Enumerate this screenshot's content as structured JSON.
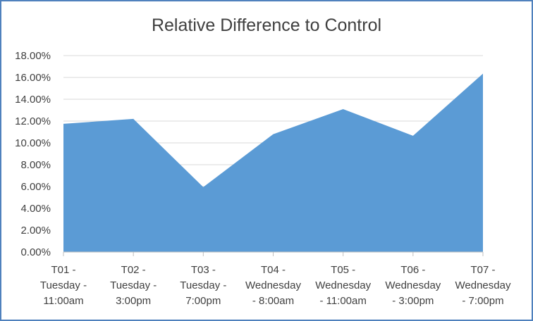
{
  "chart_data": {
    "type": "area",
    "title": "Relative Difference to Control",
    "xlabel": "",
    "ylabel": "",
    "categories": [
      [
        "T01 -",
        "Tuesday -",
        "11:00am"
      ],
      [
        "T02 -",
        "Tuesday -",
        "3:00pm"
      ],
      [
        "T03 -",
        "Tuesday -",
        "7:00pm"
      ],
      [
        "T04 -",
        "Wednesday",
        "- 8:00am"
      ],
      [
        "T05 -",
        "Wednesday",
        "- 11:00am"
      ],
      [
        "T06 -",
        "Wednesday",
        "- 3:00pm"
      ],
      [
        "T07 -",
        "Wednesday",
        "- 7:00pm"
      ]
    ],
    "values": [
      0.1175,
      0.122,
      0.0595,
      0.108,
      0.131,
      0.1065,
      0.1635
    ],
    "ylim": [
      0,
      0.18
    ],
    "yticks": [
      "0.00%",
      "2.00%",
      "4.00%",
      "6.00%",
      "8.00%",
      "10.00%",
      "12.00%",
      "14.00%",
      "16.00%",
      "18.00%"
    ],
    "grid": true,
    "legend": "none",
    "colors": {
      "area": "#5b9bd5",
      "grid": "#d9d9d9",
      "axis": "#bfbfbf",
      "border": "#4f81bd"
    }
  }
}
